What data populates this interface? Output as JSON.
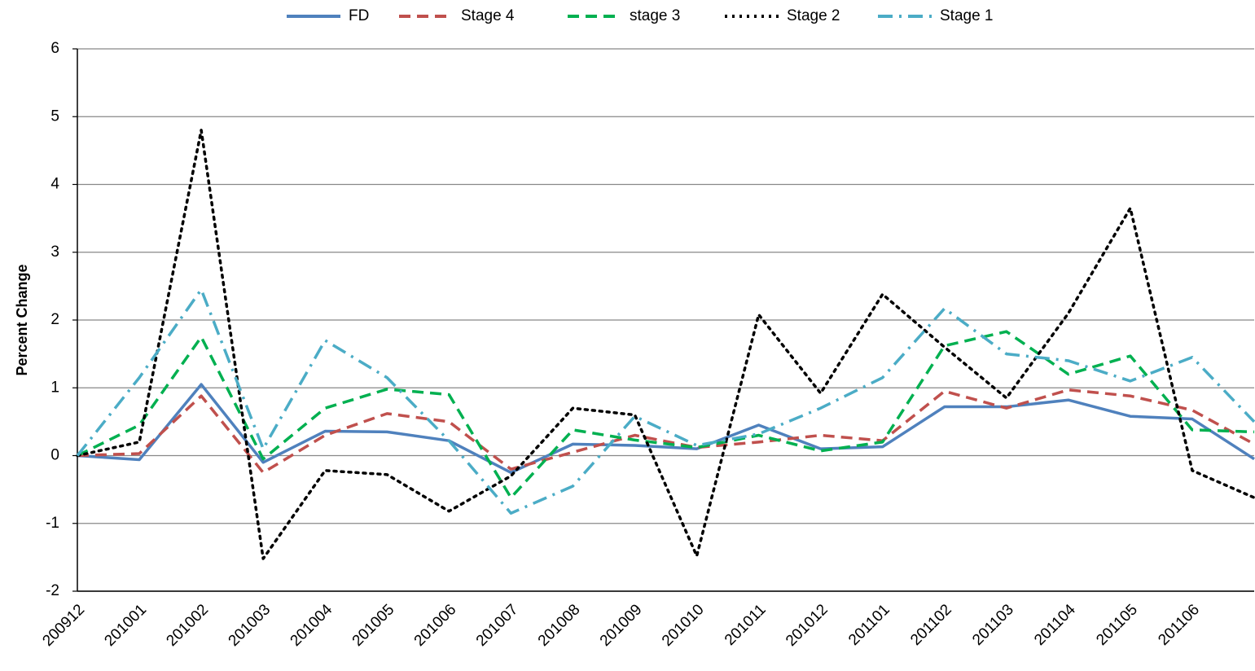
{
  "chart_data": {
    "type": "line",
    "y_label": "Percent Change",
    "categories": [
      "200912",
      "201001",
      "201002",
      "201003",
      "201004",
      "201005",
      "201006",
      "201007",
      "201008",
      "201009",
      "201010",
      "201011",
      "201012",
      "201101",
      "201102",
      "201103",
      "201104",
      "201105",
      "201106",
      null
    ],
    "series": [
      {
        "name": "FD",
        "color": "#4f81bd",
        "style": "solid",
        "values": [
          0,
          -0.06,
          1.05,
          -0.1,
          0.36,
          0.35,
          0.22,
          -0.25,
          0.17,
          0.15,
          0.1,
          0.45,
          0.1,
          0.13,
          0.72,
          0.72,
          0.82,
          0.58,
          0.54,
          -0.05
        ]
      },
      {
        "name": "Stage 4",
        "color": "#c0504d",
        "style": "dashed",
        "values": [
          0,
          0.03,
          0.88,
          -0.25,
          0.3,
          0.62,
          0.5,
          -0.2,
          0.05,
          0.3,
          0.12,
          0.2,
          0.3,
          0.22,
          0.95,
          0.7,
          0.97,
          0.88,
          0.67,
          0.17
        ]
      },
      {
        "name": "stage 3",
        "color": "#00b050",
        "style": "dashed",
        "values": [
          0,
          0.45,
          1.75,
          -0.05,
          0.7,
          0.98,
          0.9,
          -0.62,
          0.38,
          0.23,
          0.12,
          0.3,
          0.07,
          0.2,
          1.62,
          1.83,
          1.2,
          1.47,
          0.38,
          0.35
        ]
      },
      {
        "name": "Stage 2",
        "color": "#000000",
        "style": "dotted",
        "values": [
          0,
          0.2,
          4.8,
          -1.52,
          -0.22,
          -0.28,
          -0.82,
          -0.3,
          0.7,
          0.6,
          -1.48,
          2.08,
          0.92,
          2.38,
          1.6,
          0.85,
          2.1,
          3.65,
          -0.22,
          -0.62
        ]
      },
      {
        "name": "Stage 1",
        "color": "#4bacc6",
        "style": "dashdot",
        "values": [
          0,
          1.15,
          2.45,
          0.1,
          1.7,
          1.15,
          0.22,
          -0.85,
          -0.45,
          0.58,
          0.15,
          0.32,
          0.7,
          1.15,
          2.17,
          1.5,
          1.4,
          1.1,
          1.45,
          0.5
        ]
      }
    ],
    "ylim": [
      -2,
      6
    ],
    "yticks": [
      -2,
      -1,
      0,
      1,
      2,
      3,
      4,
      5,
      6
    ],
    "grid": true,
    "legend": "top"
  }
}
